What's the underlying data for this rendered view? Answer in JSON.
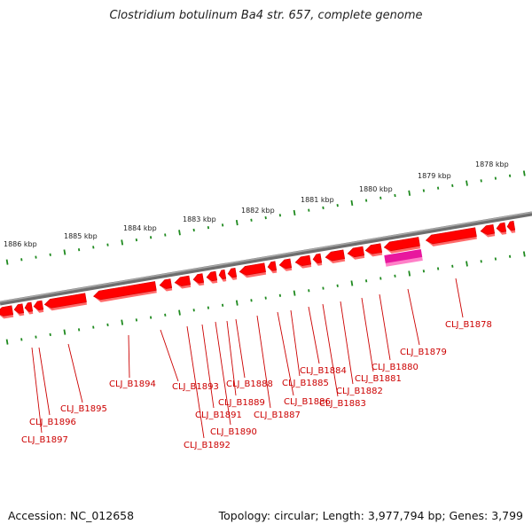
{
  "title": "Clostridium botulinum Ba4 str. 657, complete genome",
  "footer": {
    "accession": "Accession: NC_012658",
    "summary": "Topology: circular; Length: 3,977,794 bp; Genes: 3,799"
  },
  "scale_ticks": [
    {
      "label": "1886 kbp"
    },
    {
      "label": "1885 kbp"
    },
    {
      "label": "1884 kbp"
    },
    {
      "label": "1883 kbp"
    },
    {
      "label": "1882 kbp"
    },
    {
      "label": "1881 kbp"
    },
    {
      "label": "1880 kbp"
    },
    {
      "label": "1879 kbp"
    },
    {
      "label": "1878 kbp"
    }
  ],
  "gene_labels": [
    "CLJ_B1897",
    "CLJ_B1896",
    "CLJ_B1895",
    "CLJ_B1894",
    "CLJ_B1893",
    "CLJ_B1892",
    "CLJ_B1891",
    "CLJ_B1890",
    "CLJ_B1889",
    "CLJ_B1888",
    "CLJ_B1887",
    "CLJ_B1886",
    "CLJ_B1885",
    "CLJ_B1884",
    "CLJ_B1883",
    "CLJ_B1882",
    "CLJ_B1881",
    "CLJ_B1880",
    "CLJ_B1879",
    "CLJ_B1878"
  ],
  "colors": {
    "gene": "#ff0000",
    "gene_dark": "#d40000",
    "gene_light": "#ff6a6a",
    "highlight_gene": "#e8179e",
    "backbone": "#808080",
    "tick": "#1f8a1f",
    "label": "#cc0000"
  }
}
